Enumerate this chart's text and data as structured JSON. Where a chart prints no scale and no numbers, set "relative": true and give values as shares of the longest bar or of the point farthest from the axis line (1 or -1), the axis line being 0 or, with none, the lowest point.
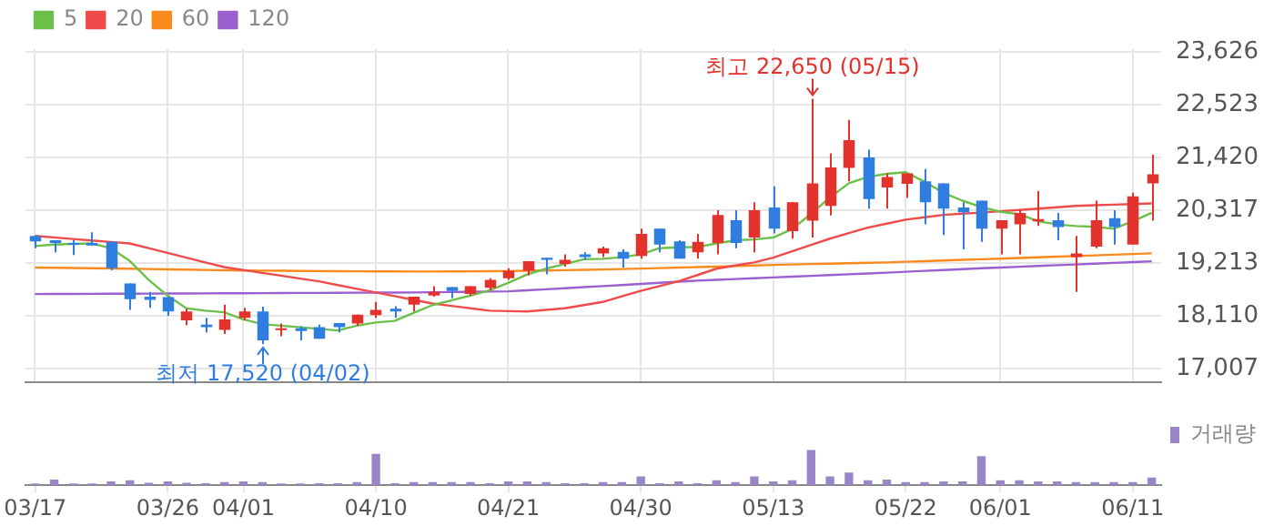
{
  "chart_data": [
    {
      "type": "candlestick",
      "categories": [
        null,
        null,
        null,
        null,
        null,
        null,
        null,
        null,
        null,
        null,
        null,
        null,
        null,
        null,
        null,
        null,
        null,
        null,
        null,
        null,
        null,
        null,
        null,
        null,
        null,
        null,
        null,
        null,
        null,
        null,
        null,
        null,
        null,
        null,
        null,
        null,
        null,
        null,
        null,
        null,
        null,
        null,
        null,
        null,
        null,
        null,
        null,
        null,
        null,
        null,
        null,
        null,
        null,
        null,
        null,
        null,
        null,
        null,
        null,
        null
      ],
      "ohlc": [
        [
          19779,
          19779,
          19524,
          19666
        ],
        [
          19690,
          19690,
          19435,
          19633
        ],
        [
          19633,
          19690,
          19382,
          19600
        ],
        [
          19633,
          19855,
          19580,
          19580
        ],
        [
          19657,
          19657,
          19060,
          19103
        ],
        [
          18785,
          18785,
          18232,
          18454
        ],
        [
          18507,
          18607,
          18275,
          18441
        ],
        [
          18497,
          18497,
          18110,
          18199
        ],
        [
          18011,
          18255,
          17911,
          18199
        ],
        [
          17924,
          18067,
          17759,
          17868
        ],
        [
          17812,
          18342,
          17726,
          18034
        ],
        [
          18067,
          18275,
          18011,
          18199
        ],
        [
          18199,
          18299,
          17520,
          17593
        ],
        [
          17812,
          17944,
          17679,
          17845
        ],
        [
          17845,
          17891,
          17593,
          17789
        ],
        [
          17868,
          17924,
          17626,
          17626
        ],
        [
          17957,
          17957,
          17759,
          17868
        ],
        [
          17944,
          18133,
          17901,
          18133
        ],
        [
          18123,
          18398,
          18067,
          18232
        ],
        [
          18255,
          18309,
          18067,
          18199
        ],
        [
          18342,
          18507,
          18199,
          18507
        ],
        [
          18531,
          18729,
          18507,
          18607
        ],
        [
          18706,
          18706,
          18474,
          18627
        ],
        [
          18564,
          18729,
          18521,
          18729
        ],
        [
          18696,
          18895,
          18640,
          18862
        ],
        [
          18895,
          19103,
          18862,
          19050
        ],
        [
          19050,
          19249,
          18951,
          19249
        ],
        [
          19325,
          19325,
          18977,
          19282
        ],
        [
          19193,
          19392,
          19137,
          19282
        ],
        [
          19392,
          19435,
          19282,
          19335
        ],
        [
          19415,
          19557,
          19335,
          19524
        ],
        [
          19448,
          19501,
          19117,
          19302
        ],
        [
          19359,
          19931,
          19302,
          19822
        ],
        [
          19931,
          19931,
          19435,
          19600
        ],
        [
          19666,
          19690,
          19302,
          19302
        ],
        [
          19435,
          19822,
          19302,
          19657
        ],
        [
          19633,
          20319,
          19392,
          20220
        ],
        [
          20110,
          20319,
          19524,
          19633
        ],
        [
          19746,
          20485,
          19435,
          20319
        ],
        [
          20375,
          20816,
          19832,
          19931
        ],
        [
          19878,
          20485,
          19723,
          20485
        ],
        [
          20097,
          22650,
          19746,
          20882
        ],
        [
          20408,
          21511,
          20210,
          21213
        ],
        [
          21204,
          22207,
          20925,
          21786
        ],
        [
          21422,
          21587,
          20352,
          20551
        ],
        [
          20793,
          21091,
          20352,
          21015
        ],
        [
          20872,
          21091,
          20574,
          21091
        ],
        [
          20925,
          21180,
          20021,
          20485
        ],
        [
          20882,
          20882,
          19799,
          20352
        ],
        [
          20375,
          20485,
          19501,
          20276
        ],
        [
          20518,
          20518,
          19657,
          19931
        ],
        [
          19931,
          20110,
          19392,
          20110
        ],
        [
          20021,
          20329,
          19392,
          20263
        ],
        [
          20084,
          20716,
          19988,
          20130
        ],
        [
          20110,
          20263,
          19690,
          19965
        ],
        [
          19335,
          19779,
          18607,
          19415
        ],
        [
          19557,
          20518,
          19524,
          20110
        ],
        [
          20153,
          20319,
          19600,
          19965
        ],
        [
          19600,
          20683,
          19600,
          20607
        ],
        [
          20882,
          21478,
          20097,
          21071
        ]
      ],
      "colors": [
        "#2f7de1",
        "#2f7de1",
        "#2f7de1",
        "#2f7de1",
        "#2f7de1",
        "#2f7de1",
        "#2f7de1",
        "#2f7de1",
        "#e3312b",
        "#2f7de1",
        "#e3312b",
        "#e3312b",
        "#2f7de1",
        "#e3312b",
        "#2f7de1",
        "#2f7de1",
        "#2f7de1",
        "#e3312b",
        "#e3312b",
        "#2f7de1",
        "#e3312b",
        "#e3312b",
        "#2f7de1",
        "#e3312b",
        "#e3312b",
        "#e3312b",
        "#e3312b",
        "#2f7de1",
        "#e3312b",
        "#2f7de1",
        "#e3312b",
        "#2f7de1",
        "#e3312b",
        "#2f7de1",
        "#2f7de1",
        "#e3312b",
        "#e3312b",
        "#2f7de1",
        "#e3312b",
        "#2f7de1",
        "#e3312b",
        "#e3312b",
        "#e3312b",
        "#e3312b",
        "#2f7de1",
        "#e3312b",
        "#e3312b",
        "#2f7de1",
        "#2f7de1",
        "#2f7de1",
        "#2f7de1",
        "#e3312b",
        "#e3312b",
        "#e3312b",
        "#2f7de1",
        "#e3312b",
        "#e3312b",
        "#2f7de1",
        "#e3312b",
        "#e3312b"
      ],
      "series": [
        {
          "name": "5",
          "type": "line",
          "color": "#6cc04a",
          "values": [
            19567,
            19600,
            19614,
            19623,
            19524,
            19259,
            18862,
            18531,
            18266,
            18216,
            18183,
            18034,
            17934,
            17901,
            17868,
            17835,
            17802,
            17901,
            17967,
            18001,
            18166,
            18332,
            18431,
            18531,
            18640,
            18795,
            18971,
            19094,
            19193,
            19292,
            19302,
            19335,
            19392,
            19524,
            19541,
            19547,
            19623,
            19690,
            19706,
            19746,
            19922,
            20243,
            20584,
            20882,
            21015,
            21081,
            21114,
            20915,
            20683,
            20518,
            20385,
            20286,
            20236,
            20087,
            20021,
            19988,
            19971,
            19931,
            20087,
            20263
          ]
        },
        {
          "name": "20",
          "type": "line",
          "color": "#ef4b4b",
          "values": [
            19779,
            19749,
            19716,
            19686,
            19653,
            19623,
            19524,
            19425,
            19325,
            19226,
            19127,
            19067,
            19007,
            18948,
            18888,
            18829,
            18752,
            18673,
            18597,
            18521,
            18441,
            18365,
            18315,
            18266,
            18216,
            18206,
            18199,
            18232,
            18266,
            18332,
            18398,
            18514,
            18630,
            18729,
            18829,
            18961,
            19094,
            19160,
            19226,
            19325,
            19458,
            19590,
            19723,
            19839,
            19955,
            20037,
            20120,
            20170,
            20220,
            20246,
            20269,
            20296,
            20322,
            20352,
            20379,
            20408,
            20422,
            20435,
            20448,
            20461
          ]
        },
        {
          "name": "60",
          "type": "line",
          "color": "#fb8a1c",
          "values": [
            19117,
            19112,
            19108,
            19103,
            19099,
            19094,
            19087,
            19080,
            19074,
            19067,
            19060,
            19057,
            19054,
            19050,
            19047,
            19044,
            19042,
            19040,
            19038,
            19036,
            19034,
            19035,
            19037,
            19039,
            19042,
            19044,
            19051,
            19057,
            19064,
            19070,
            19077,
            19087,
            19097,
            19107,
            19117,
            19127,
            19138,
            19149,
            19161,
            19172,
            19183,
            19192,
            19200,
            19209,
            19217,
            19226,
            19239,
            19252,
            19266,
            19279,
            19292,
            19305,
            19319,
            19332,
            19346,
            19359,
            19373,
            19387,
            19401,
            19415
          ]
        },
        {
          "name": "120",
          "type": "line",
          "color": "#9b5fd0",
          "values": [
            18564,
            18565,
            18566,
            18568,
            18569,
            18570,
            18572,
            18574,
            18576,
            18578,
            18580,
            18581,
            18583,
            18584,
            18586,
            18587,
            18589,
            18591,
            18593,
            18595,
            18597,
            18602,
            18606,
            18611,
            18615,
            18620,
            18642,
            18664,
            18685,
            18707,
            18729,
            18752,
            18775,
            18799,
            18822,
            18845,
            18862,
            18878,
            18895,
            18911,
            18928,
            18945,
            18961,
            18978,
            18994,
            19011,
            19029,
            19048,
            19066,
            19085,
            19103,
            19119,
            19135,
            19151,
            19167,
            19183,
            19200,
            19216,
            19233,
            19249
          ]
        }
      ],
      "ylim": [
        16710,
        23690
      ],
      "yticks": [
        {
          "value": 17007,
          "label": "17,007"
        },
        {
          "value": 18110,
          "label": "18,110"
        },
        {
          "value": 19213,
          "label": "19,213"
        },
        {
          "value": 20317,
          "label": "20,317"
        },
        {
          "value": 21420,
          "label": "21,420"
        },
        {
          "value": 22523,
          "label": "22,523"
        },
        {
          "value": 23626,
          "label": "23,626"
        }
      ],
      "grid": true,
      "legend": "top left",
      "tick_labels": "y",
      "annotations": [
        {
          "text": "최고 22,650 (05/15)",
          "y": 22650
        },
        {
          "text": "최저 17,520 (04/02)",
          "y": 17520
        }
      ]
    },
    {
      "type": "bar",
      "categories": [
        "03/17",
        null,
        null,
        null,
        null,
        null,
        null,
        "03/26",
        null,
        null,
        null,
        "04/01",
        null,
        null,
        null,
        null,
        null,
        null,
        "04/10",
        null,
        null,
        null,
        null,
        null,
        null,
        "04/21",
        null,
        null,
        null,
        null,
        null,
        null,
        "04/30",
        null,
        null,
        null,
        null,
        null,
        null,
        "05/13",
        null,
        null,
        null,
        null,
        null,
        null,
        "05/22",
        null,
        null,
        null,
        null,
        "06/01",
        null,
        null,
        null,
        null,
        null,
        null,
        "06/11",
        null
      ],
      "series": [
        {
          "name": "거래량",
          "color": "#9b85c9",
          "values": [
            0.04,
            0.16,
            0.02,
            0.05,
            0.11,
            0.14,
            0.07,
            0.11,
            0.07,
            0.06,
            0.09,
            0.11,
            0.09,
            0.05,
            0.02,
            0.06,
            0.06,
            0.09,
            0.89,
            0.06,
            0.09,
            0.09,
            0.09,
            0.09,
            0.06,
            0.11,
            0.11,
            0.09,
            0.06,
            0.06,
            0.09,
            0.09,
            0.25,
            0.06,
            0.11,
            0.06,
            0.14,
            0.09,
            0.25,
            0.11,
            0.14,
            1,
            0.25,
            0.36,
            0.14,
            0.16,
            0.09,
            0.09,
            0.11,
            0.11,
            0.83,
            0.14,
            0.14,
            0.11,
            0.11,
            0.09,
            0.09,
            0.09,
            0.09,
            0.22
          ]
        }
      ],
      "relative": true,
      "legend": "top right",
      "tick_labels": "x"
    }
  ]
}
